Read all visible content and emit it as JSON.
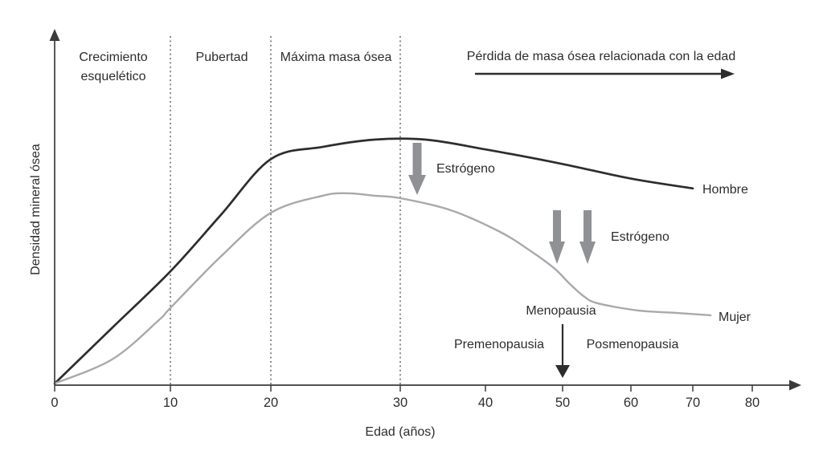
{
  "figure_background": "#ffffff",
  "colors": {
    "hombre_line": "#2d2d2f",
    "mujer_line": "#a7a9ac",
    "annotation_arrow_gray": "#8f9194",
    "menopause_arrow_black": "#2d2d2f",
    "dashed_reference_line": "#4f4f51",
    "axis": "#3a3a3c",
    "text": "#2d2d2f"
  },
  "chart_data": {
    "type": "line",
    "title": "",
    "xlabel": "Edad (años)",
    "ylabel": "Densidad mineral ósea",
    "x_ticks": [
      0,
      10,
      20,
      30,
      40,
      50,
      60,
      70,
      80
    ],
    "x_axis_range": [
      0,
      87
    ],
    "ylim": [
      0,
      105
    ],
    "y_axis_scale": "relativa, sin valores numéricos visibles (0–100 estimado)",
    "grid": "sin rejilla; líneas verticales punteadas de referencia",
    "dashed_lines_at_ages": [
      10,
      20,
      30
    ],
    "legend_position": "etiquetas junto al extremo derecho de cada curva",
    "series": [
      {
        "name": "Hombre",
        "label": "Hombre",
        "color": "#2d2d2f",
        "points": [
          [
            0,
            0
          ],
          [
            5,
            23
          ],
          [
            10,
            46
          ],
          [
            15,
            69
          ],
          [
            20,
            92
          ],
          [
            24,
            97
          ],
          [
            28,
            100
          ],
          [
            33,
            100
          ],
          [
            40,
            96
          ],
          [
            50,
            90
          ],
          [
            60,
            84
          ],
          [
            70,
            80
          ]
        ]
      },
      {
        "name": "Mujer",
        "label": "Mujer",
        "color": "#a7a9ac",
        "points": [
          [
            0,
            0
          ],
          [
            5,
            10
          ],
          [
            9,
            26
          ],
          [
            10,
            31
          ],
          [
            15,
            52
          ],
          [
            20,
            70
          ],
          [
            24,
            77
          ],
          [
            26,
            78
          ],
          [
            28,
            77
          ],
          [
            30,
            76
          ],
          [
            36,
            71
          ],
          [
            42,
            62
          ],
          [
            46,
            54
          ],
          [
            49,
            47
          ],
          [
            51,
            41
          ],
          [
            53,
            36
          ],
          [
            55,
            33
          ],
          [
            61,
            30
          ],
          [
            67,
            29
          ],
          [
            73,
            28
          ]
        ]
      }
    ],
    "phase_labels": [
      {
        "text": "Crecimiento esquelético",
        "from_age": 0,
        "to_age": 10
      },
      {
        "text": "Pubertad",
        "from_age": 10,
        "to_age": 20
      },
      {
        "text": "Máxima masa ósea",
        "from_age": 20,
        "to_age": 30
      },
      {
        "text": "Pérdida de masa ósea relacionada con la edad",
        "from_age": 30,
        "arrow": "derecha"
      }
    ],
    "annotations": [
      {
        "text": "Estrógeno",
        "arrow": "flecha gris hacia abajo",
        "age": 32,
        "series": "Hombre"
      },
      {
        "text": "Estrógeno",
        "arrow": "doble flecha gris hacia abajo",
        "age": "49–54",
        "series": "Mujer"
      },
      {
        "text": "Menopausia",
        "arrow": "flecha negra hacia el eje",
        "age": 50
      },
      {
        "text": "Premenopausia"
      },
      {
        "text": "Posmenopausia"
      }
    ]
  }
}
